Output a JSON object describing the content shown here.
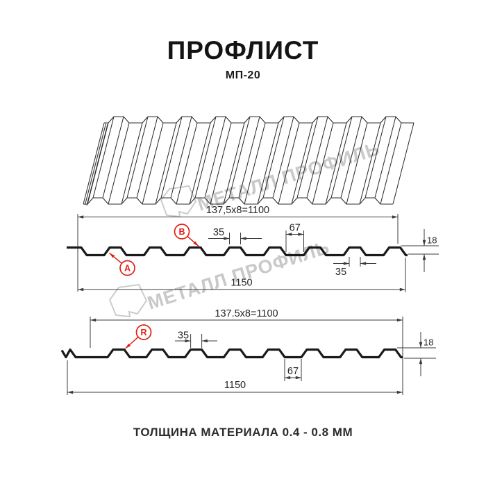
{
  "title": "ПРОФЛИСТ",
  "subtitle": "МП-20",
  "footer": "ТОЛЩИНА МАТЕРИАЛА 0.4 - 0.8 ММ",
  "watermark": {
    "text": "МЕТАЛЛ ПРОФИЛЬ",
    "color": "#c9c9c9"
  },
  "colors": {
    "profile_line": "#1a1a1a",
    "thin_line": "#3b3b3b",
    "sheet_line": "#2e2e2e",
    "accent_red": "#de1f12",
    "text": "#262626"
  },
  "profile_top": {
    "dims": {
      "coverage": "137,5x8=1100",
      "rib_top_width": "35",
      "valley_width": "67",
      "height": "18",
      "rib_bottom_width": "35",
      "overall_width": "1150"
    },
    "point_labels": {
      "a": "A",
      "b": "B"
    }
  },
  "profile_bottom": {
    "dims": {
      "coverage": "137.5x8=1100",
      "rib_top_width": "35",
      "valley_width": "67",
      "height": "18",
      "overall_width": "1150"
    },
    "point_labels": {
      "r": "R"
    }
  }
}
